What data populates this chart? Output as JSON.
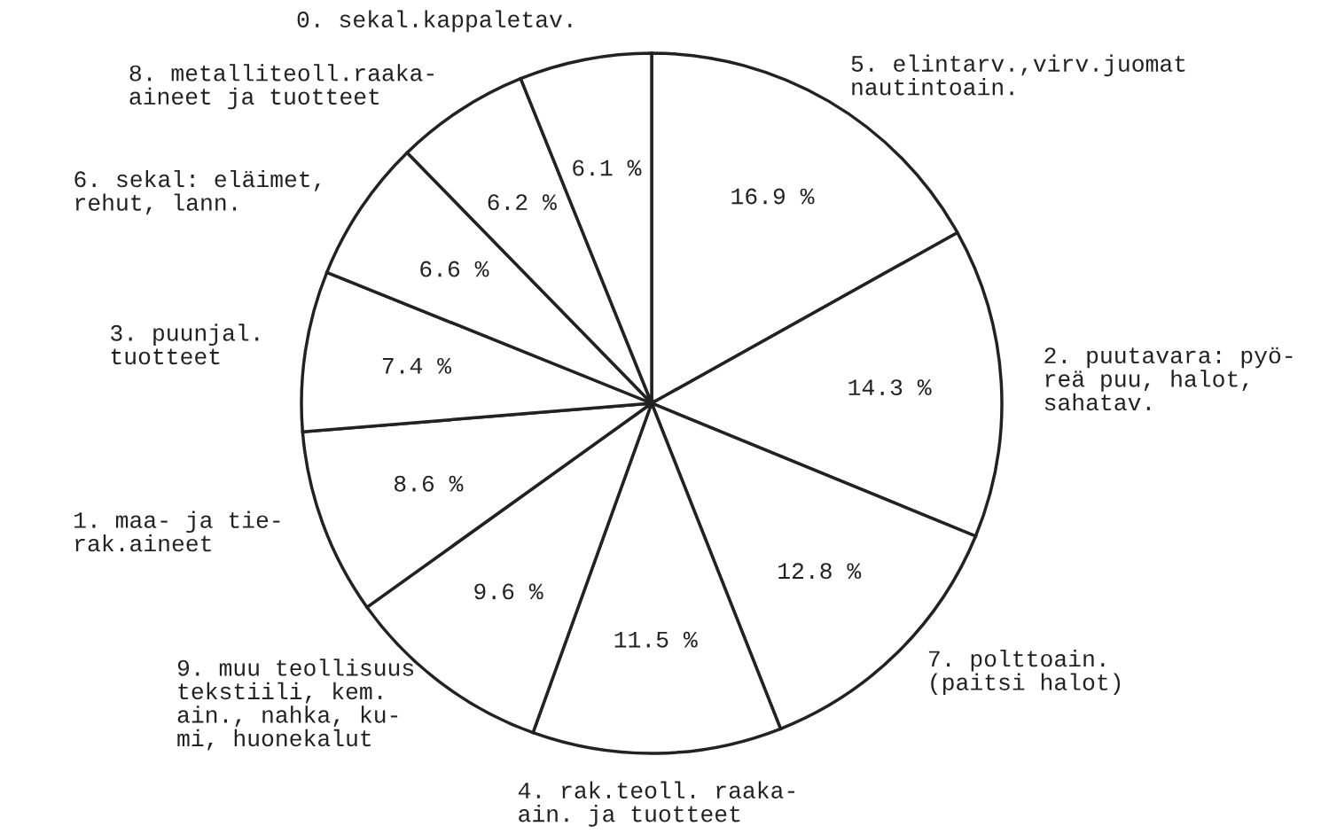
{
  "chart_data": {
    "type": "pie",
    "categories": [
      "5. elintarv.,virv.juomat\nnautintoain.",
      "2. puutavara: pyö-\nreä puu, halot,\nsahatav.",
      "7. polttoain.\n(paitsi halot)",
      "4. rak.teoll. raaka-\nain. ja tuotteet",
      "9. muu teollisuus\ntekstiili, kem.\nain., nahka, ku-\nmi, huonekalut",
      "1. maa- ja tie-\nrak.aineet",
      "3. puunjal.\ntuotteet",
      "6. sekal: eläimet,\nrehut, lann.",
      "8. metalliteoll.raaka-\naineet ja tuotteet",
      "0. sekal.kappaletav."
    ],
    "values": [
      16.9,
      14.3,
      12.8,
      11.5,
      9.6,
      8.6,
      7.4,
      6.6,
      6.2,
      6.1
    ],
    "value_labels": [
      "16.9 %",
      "14.3 %",
      "12.8 %",
      "11.5 %",
      "9.6 %",
      "8.6 %",
      "7.4 %",
      "6.6 %",
      "6.2 %",
      "6.1 %"
    ],
    "colors": [
      "#ffffff",
      "#ffffff",
      "#ffffff",
      "#ffffff",
      "#ffffff",
      "#ffffff",
      "#ffffff",
      "#ffffff",
      "#ffffff",
      "#ffffff"
    ]
  }
}
